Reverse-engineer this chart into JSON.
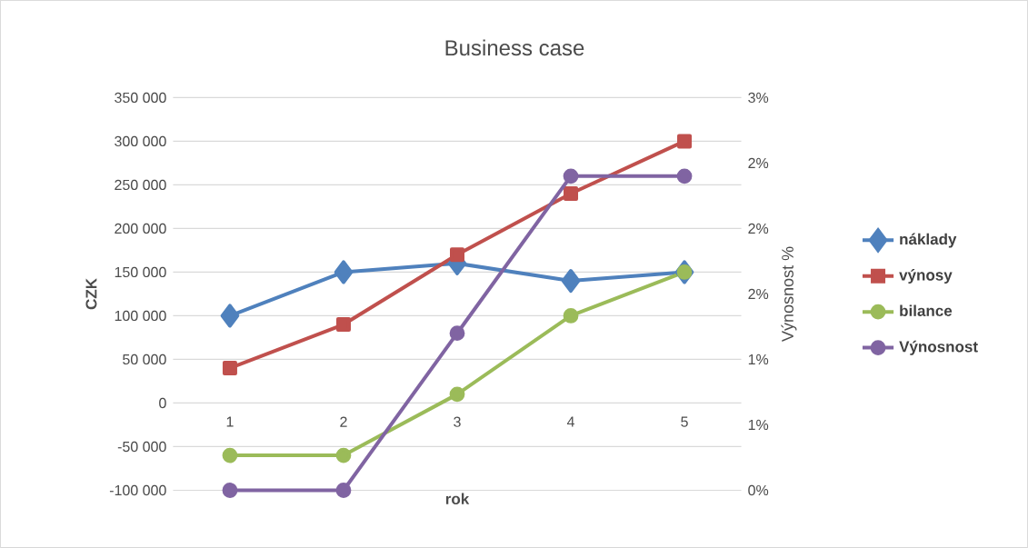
{
  "chart_data": {
    "type": "line",
    "title": "Business case",
    "xlabel": "rok",
    "ylabel": "CZK",
    "y2label": "Výnosnost %",
    "categories": [
      "1",
      "2",
      "3",
      "4",
      "5"
    ],
    "series": [
      {
        "name": "náklady",
        "color": "#4f81bd",
        "marker": "diamond",
        "values": [
          100000,
          150000,
          160000,
          140000,
          150000
        ]
      },
      {
        "name": "výnosy",
        "color": "#c0504d",
        "marker": "square",
        "values": [
          40000,
          90000,
          170000,
          240000,
          300000
        ]
      },
      {
        "name": "bilance",
        "color": "#9bbb59",
        "marker": "circle",
        "values": [
          -60000,
          -60000,
          10000,
          100000,
          150000
        ]
      },
      {
        "name": "Výnosnost",
        "color": "#8064a2",
        "marker": "circle",
        "axis": "y2",
        "values": [
          0,
          0,
          1.2,
          2.4,
          2.4
        ]
      }
    ],
    "ylim": [
      -100000,
      350000
    ],
    "yticks": [
      {
        "value": -100000,
        "label": "-100 000"
      },
      {
        "value": -50000,
        "label": "-50 000"
      },
      {
        "value": 0,
        "label": "0"
      },
      {
        "value": 50000,
        "label": "50 000"
      },
      {
        "value": 100000,
        "label": "100 000"
      },
      {
        "value": 150000,
        "label": "150 000"
      },
      {
        "value": 200000,
        "label": "200 000"
      },
      {
        "value": 250000,
        "label": "250 000"
      },
      {
        "value": 300000,
        "label": "300 000"
      },
      {
        "value": 350000,
        "label": "350 000"
      }
    ],
    "y2lim": [
      0,
      3
    ],
    "y2ticks": [
      {
        "value": 0,
        "label": "0%"
      },
      {
        "value": 0.5,
        "label": "1%"
      },
      {
        "value": 1,
        "label": "1%"
      },
      {
        "value": 1.5,
        "label": "2%"
      },
      {
        "value": 2,
        "label": "2%"
      },
      {
        "value": 2.5,
        "label": "2%"
      },
      {
        "value": 3,
        "label": "3%"
      }
    ],
    "grid": "y",
    "legend": "right",
    "line_style": "solid"
  }
}
